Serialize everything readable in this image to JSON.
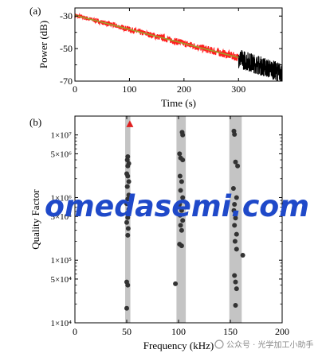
{
  "watermark": "omedasemi.com",
  "footer_credit": "公众号 · 光学加工小助手",
  "colors": {
    "noise_red": "#ff1f1f",
    "noise_black": "#000000",
    "fit_line": "#9e9e2a",
    "band_gray": "#c4c4c4",
    "dot": "#333333",
    "marker_red": "#e02020",
    "watermark_blue": "#1f49c9"
  },
  "chart_data": [
    {
      "panel": "(a)",
      "type": "line",
      "xlabel": "Time (s)",
      "ylabel": "Power (dB)",
      "xlim": [
        0,
        380
      ],
      "ylim": [
        -70,
        -25
      ],
      "xticks": [
        0,
        100,
        200,
        300
      ],
      "yticks": [
        -30,
        -50,
        -70
      ],
      "yminor": [
        -40,
        -60
      ],
      "series": [
        {
          "color": "#ff1f1f",
          "x_range": [
            0,
            300
          ],
          "start": -29.5,
          "end": -55.5,
          "noise_amplitude": 2.5
        },
        {
          "color": "#000000",
          "x_range": [
            300,
            380
          ],
          "level_start": -56,
          "level_end": -65,
          "noise_amplitude": 6
        },
        {
          "color": "#9e9e2a",
          "fit": true,
          "x": [
            0,
            300
          ],
          "y": [
            -29.5,
            -55.5
          ]
        }
      ]
    },
    {
      "panel": "(b)",
      "type": "scatter",
      "xlabel": "Frequency (kHz)",
      "ylabel": "Quality Factor",
      "xlim": [
        0,
        200
      ],
      "ylim": [
        10000,
        20000000
      ],
      "yscale": "log",
      "xticks": [
        0,
        50,
        100,
        150,
        200
      ],
      "yticks": [
        {
          "value": 10000,
          "label": "1×10⁴"
        },
        {
          "value": 50000,
          "label": "5×10⁴"
        },
        {
          "value": 100000,
          "label": "1×10⁵"
        },
        {
          "value": 500000,
          "label": "5×10⁵"
        },
        {
          "value": 1000000,
          "label": "1×10⁶"
        },
        {
          "value": 5000000,
          "label": "5×10⁶"
        },
        {
          "value": 10000000,
          "label": "1×10⁷"
        }
      ],
      "bands": [
        [
          48.5,
          53.5
        ],
        [
          98,
          107
        ],
        [
          149,
          161
        ]
      ],
      "points": [
        {
          "x": 51,
          "y": 4500000
        },
        {
          "x": 50.5,
          "y": 4000000
        },
        {
          "x": 52,
          "y": 3500000
        },
        {
          "x": 51,
          "y": 3200000
        },
        {
          "x": 50,
          "y": 2400000
        },
        {
          "x": 51,
          "y": 2200000
        },
        {
          "x": 52,
          "y": 1800000
        },
        {
          "x": 50.5,
          "y": 1500000
        },
        {
          "x": 52,
          "y": 1100000
        },
        {
          "x": 51,
          "y": 950000
        },
        {
          "x": 50,
          "y": 800000
        },
        {
          "x": 52,
          "y": 650000
        },
        {
          "x": 50.5,
          "y": 560000
        },
        {
          "x": 51,
          "y": 480000
        },
        {
          "x": 50,
          "y": 400000
        },
        {
          "x": 51.5,
          "y": 320000
        },
        {
          "x": 51,
          "y": 250000
        },
        {
          "x": 50,
          "y": 45000
        },
        {
          "x": 51,
          "y": 40000
        },
        {
          "x": 50,
          "y": 17000
        },
        {
          "x": 103.5,
          "y": 11000000
        },
        {
          "x": 104,
          "y": 10000000
        },
        {
          "x": 101,
          "y": 5000000
        },
        {
          "x": 102,
          "y": 4300000
        },
        {
          "x": 104,
          "y": 4000000
        },
        {
          "x": 101.5,
          "y": 2200000
        },
        {
          "x": 103,
          "y": 1800000
        },
        {
          "x": 102,
          "y": 1300000
        },
        {
          "x": 104,
          "y": 1000000
        },
        {
          "x": 101,
          "y": 780000
        },
        {
          "x": 103,
          "y": 620000
        },
        {
          "x": 101.5,
          "y": 520000
        },
        {
          "x": 104,
          "y": 430000
        },
        {
          "x": 102,
          "y": 360000
        },
        {
          "x": 103,
          "y": 300000
        },
        {
          "x": 101,
          "y": 180000
        },
        {
          "x": 103,
          "y": 170000
        },
        {
          "x": 97,
          "y": 42000
        },
        {
          "x": 153.5,
          "y": 11500000
        },
        {
          "x": 154,
          "y": 10200000
        },
        {
          "x": 155,
          "y": 3700000
        },
        {
          "x": 157,
          "y": 3200000
        },
        {
          "x": 153,
          "y": 1400000
        },
        {
          "x": 156,
          "y": 1000000
        },
        {
          "x": 154,
          "y": 780000
        },
        {
          "x": 153.5,
          "y": 620000
        },
        {
          "x": 155,
          "y": 470000
        },
        {
          "x": 154,
          "y": 360000
        },
        {
          "x": 156,
          "y": 260000
        },
        {
          "x": 154.5,
          "y": 200000
        },
        {
          "x": 156,
          "y": 150000
        },
        {
          "x": 162,
          "y": 120000
        },
        {
          "x": 154,
          "y": 57000
        },
        {
          "x": 155,
          "y": 45000
        },
        {
          "x": 156,
          "y": 35000
        },
        {
          "x": 155,
          "y": 19000
        }
      ],
      "markers": [
        {
          "x": 53,
          "y": 15000000,
          "shape": "triangle",
          "color": "#e02020"
        }
      ]
    }
  ]
}
